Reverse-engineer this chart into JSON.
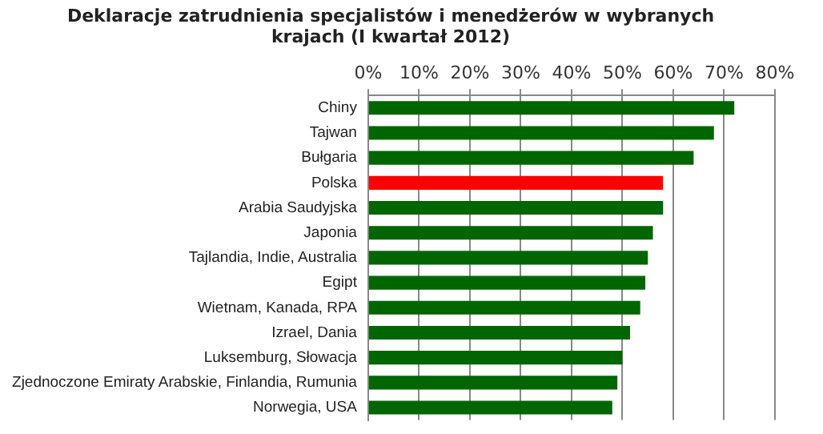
{
  "chart_data": {
    "type": "bar",
    "orientation": "horizontal",
    "title": [
      "Deklaracje zatrudnienia specjalistów i menedżerów w wybranych",
      "krajach (I kwartał 2012)"
    ],
    "categories": [
      "Chiny",
      "Tajwan",
      "Bułgaria",
      "Polska",
      "Arabia Saudyjska",
      "Japonia",
      "Tajlandia, Indie, Australia",
      "Egipt",
      "Wietnam, Kanada, RPA",
      "Izrael, Dania",
      "Luksemburg, Słowacja",
      "Zjednoczone Emiraty Arabskie, Finlandia, Rumunia",
      "Norwegia, USA"
    ],
    "values": [
      72,
      68,
      64,
      58,
      58,
      56,
      55,
      54.5,
      53.5,
      51.5,
      50,
      49,
      48
    ],
    "colors": [
      "#006600",
      "#006600",
      "#006600",
      "#ff0000",
      "#006600",
      "#006600",
      "#006600",
      "#006600",
      "#006600",
      "#006600",
      "#006600",
      "#006600",
      "#006600"
    ],
    "xlim": [
      0,
      80
    ],
    "xticks": [
      {
        "value": 0,
        "label": "0%"
      },
      {
        "value": 10,
        "label": "10%"
      },
      {
        "value": 20,
        "label": "20%"
      },
      {
        "value": 30,
        "label": "30%"
      },
      {
        "value": 40,
        "label": "40%"
      },
      {
        "value": 50,
        "label": "50%"
      },
      {
        "value": 60,
        "label": "60%"
      },
      {
        "value": 70,
        "label": "70%"
      },
      {
        "value": 80,
        "label": "80%"
      }
    ],
    "grid": "x"
  }
}
